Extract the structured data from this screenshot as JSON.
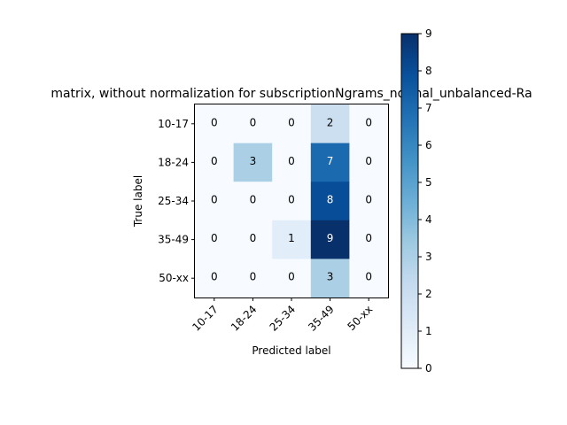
{
  "chart_data": {
    "type": "heatmap",
    "title": "matrix, without normalization for subscriptionNgrams_normal_unbalanced-Ra",
    "xlabel": "Predicted label",
    "ylabel": "True label",
    "x_categories": [
      "10-17",
      "18-24",
      "25-34",
      "35-49",
      "50-xx"
    ],
    "y_categories": [
      "10-17",
      "18-24",
      "25-34",
      "35-49",
      "50-xx"
    ],
    "values": [
      [
        0,
        0,
        0,
        2,
        0
      ],
      [
        0,
        3,
        0,
        7,
        0
      ],
      [
        0,
        0,
        0,
        8,
        0
      ],
      [
        0,
        0,
        1,
        9,
        0
      ],
      [
        0,
        0,
        0,
        3,
        0
      ]
    ],
    "colormap": "Blues",
    "colorbar": {
      "min": 0,
      "max": 9,
      "ticks": [
        "0",
        "1",
        "2",
        "3",
        "4",
        "5",
        "6",
        "7",
        "8",
        "9"
      ]
    },
    "grid": false
  }
}
